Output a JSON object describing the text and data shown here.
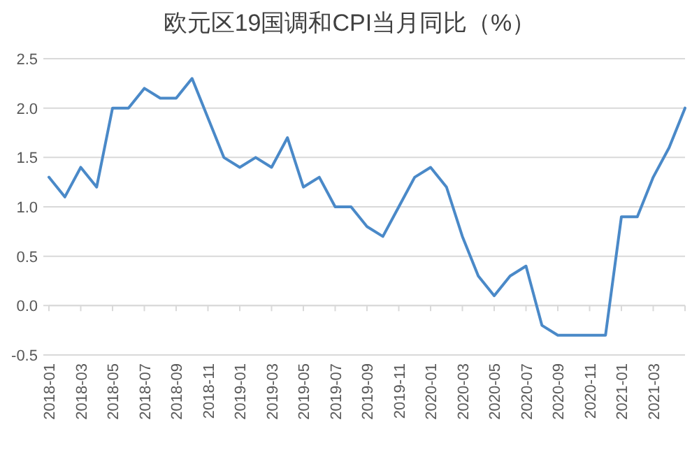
{
  "chart_data": {
    "type": "line",
    "title": "欧元区19国调和CPI当月同比（%）",
    "categories": [
      "2018-01",
      null,
      "2018-03",
      null,
      "2018-05",
      null,
      "2018-07",
      null,
      "2018-09",
      null,
      "2018-11",
      null,
      "2019-01",
      null,
      "2019-03",
      null,
      "2019-05",
      null,
      "2019-07",
      null,
      "2019-09",
      null,
      "2019-11",
      null,
      "2020-01",
      null,
      "2020-03",
      null,
      "2020-05",
      null,
      "2020-07",
      null,
      "2020-09",
      null,
      "2020-11",
      null,
      "2021-01",
      null,
      "2021-03",
      null,
      null
    ],
    "series": [
      {
        "color": "#4a89c8",
        "values": [
          1.3,
          1.1,
          1.4,
          1.2,
          2.0,
          2.0,
          2.2,
          2.1,
          2.1,
          2.3,
          1.9,
          1.5,
          1.4,
          1.5,
          1.4,
          1.7,
          1.2,
          1.3,
          1.0,
          1.0,
          0.8,
          0.7,
          1.0,
          1.3,
          1.4,
          1.2,
          0.7,
          0.3,
          0.1,
          0.3,
          0.4,
          -0.2,
          -0.3,
          -0.3,
          -0.3,
          -0.3,
          0.9,
          0.9,
          1.3,
          1.6,
          2.0
        ]
      }
    ],
    "ylim": [
      -0.5,
      2.5
    ],
    "yticks": [
      {
        "value": -0.5,
        "label": "-0.5"
      },
      {
        "value": 0,
        "label": "0.0"
      },
      {
        "value": 0.5,
        "label": "0.5"
      },
      {
        "value": 1,
        "label": "1.0"
      },
      {
        "value": 1.5,
        "label": "1.5"
      },
      {
        "value": 2,
        "label": "2.0"
      },
      {
        "value": 2.5,
        "label": "2.5"
      }
    ],
    "grid": "y",
    "marker": "none",
    "line_style": "solid"
  }
}
